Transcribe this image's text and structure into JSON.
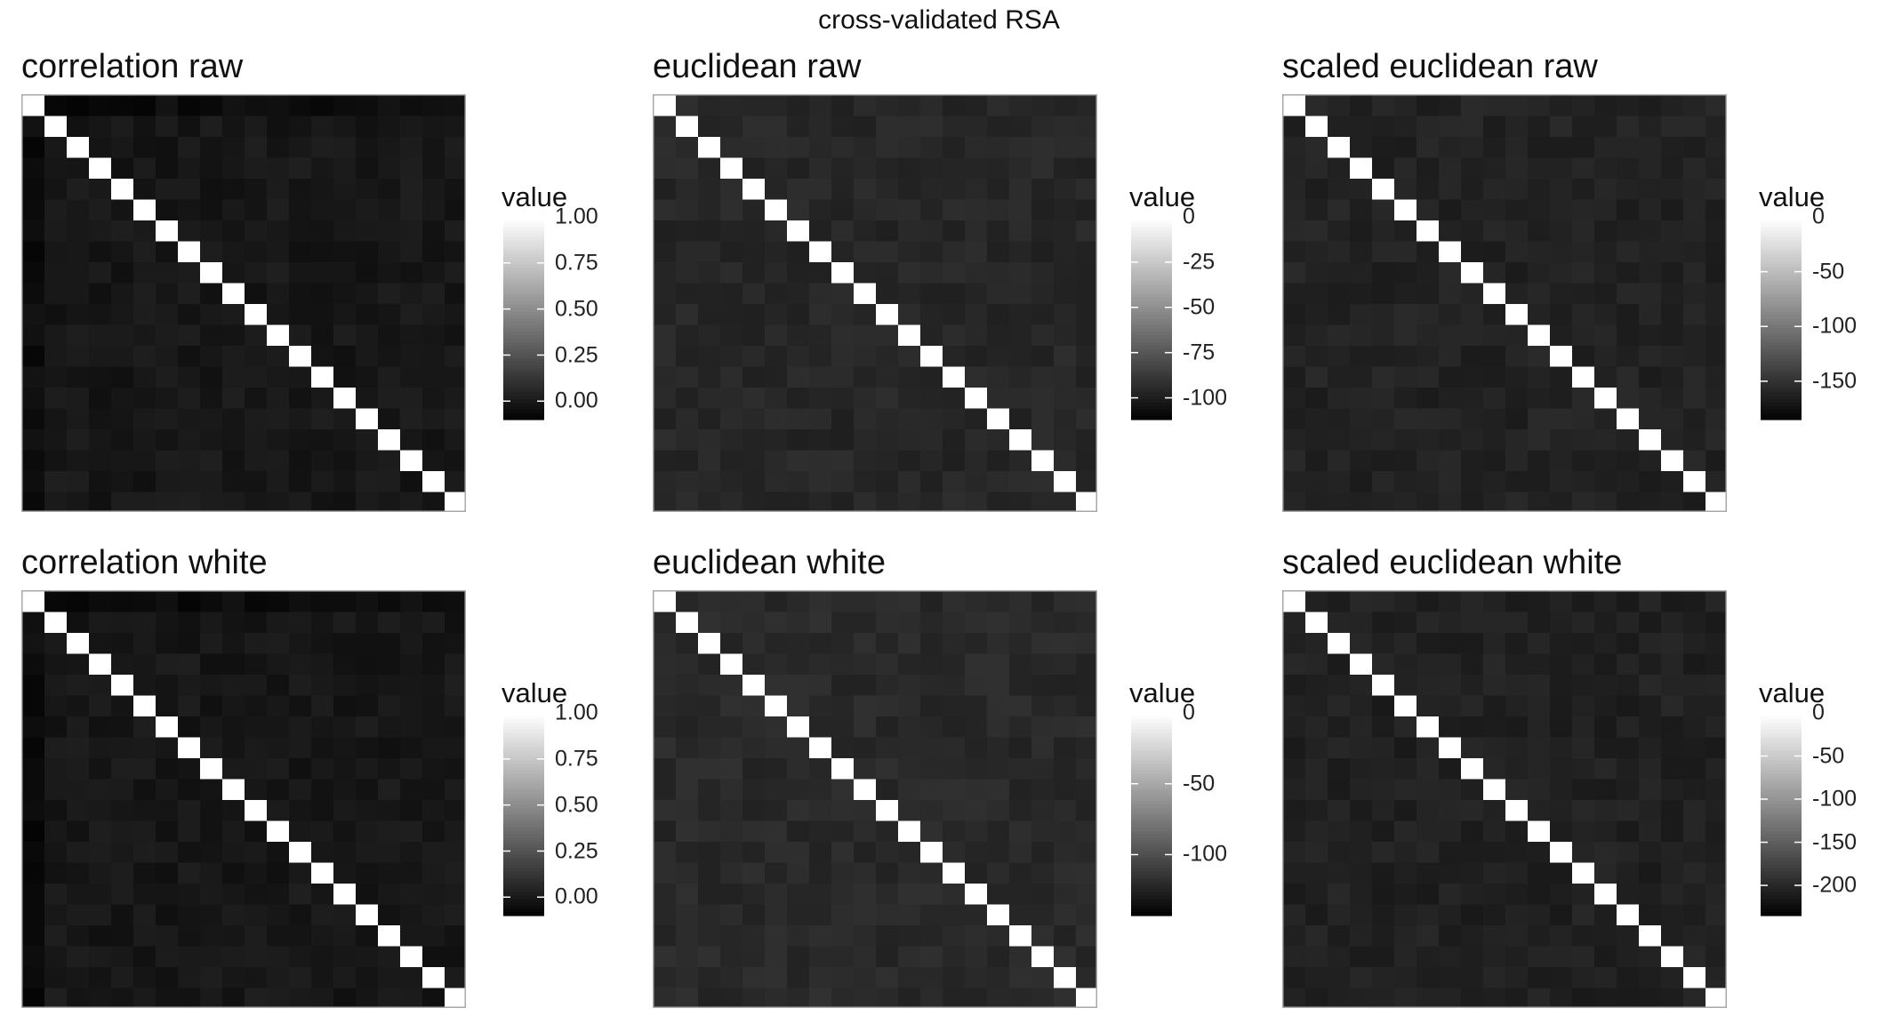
{
  "figure_title": "cross-validated RSA",
  "chart_data": [
    {
      "type": "heatmap",
      "title": "correlation raw",
      "legend_title": "value",
      "diagonal_value": 1.0,
      "off_diagonal_value": 0.0,
      "first_row_off_diagonal_value": -0.05,
      "color_range": [
        -0.1,
        1.0
      ],
      "ticks": [
        1.0,
        0.75,
        0.5,
        0.25,
        0.0
      ],
      "tick_labels": [
        "1.00",
        "0.75",
        "0.50",
        "0.25",
        "0.00"
      ],
      "matrix_size": 20
    },
    {
      "type": "heatmap",
      "title": "euclidean raw",
      "legend_title": "value",
      "diagonal_value": 0,
      "off_diagonal_value": -95,
      "color_range": [
        -112,
        0
      ],
      "ticks": [
        0,
        -25,
        -50,
        -75,
        -100
      ],
      "tick_labels": [
        "0",
        "-25",
        "-50",
        "-75",
        "-100"
      ],
      "matrix_size": 20
    },
    {
      "type": "heatmap",
      "title": "scaled euclidean raw",
      "legend_title": "value",
      "diagonal_value": 0,
      "off_diagonal_value": -160,
      "color_range": [
        -185,
        0
      ],
      "ticks": [
        0,
        -50,
        -100,
        -150
      ],
      "tick_labels": [
        "0",
        "-50",
        "-100",
        "-150"
      ],
      "matrix_size": 20
    },
    {
      "type": "heatmap",
      "title": "correlation white",
      "legend_title": "value",
      "diagonal_value": 1.0,
      "off_diagonal_value": 0.0,
      "first_row_off_diagonal_value": -0.05,
      "color_range": [
        -0.1,
        1.0
      ],
      "ticks": [
        1.0,
        0.75,
        0.5,
        0.25,
        0.0
      ],
      "tick_labels": [
        "1.00",
        "0.75",
        "0.50",
        "0.25",
        "0.00"
      ],
      "matrix_size": 20
    },
    {
      "type": "heatmap",
      "title": "euclidean white",
      "legend_title": "value",
      "diagonal_value": 0,
      "off_diagonal_value": -120,
      "color_range": [
        -143,
        0
      ],
      "ticks": [
        0,
        -50,
        -100
      ],
      "tick_labels": [
        "0",
        "-50",
        "-100"
      ],
      "matrix_size": 20
    },
    {
      "type": "heatmap",
      "title": "scaled euclidean white",
      "legend_title": "value",
      "diagonal_value": 0,
      "off_diagonal_value": -205,
      "color_range": [
        -235,
        0
      ],
      "ticks": [
        0,
        -50,
        -100,
        -150,
        -200
      ],
      "tick_labels": [
        "0",
        "-50",
        "-100",
        "-150",
        "-200"
      ],
      "matrix_size": 20
    }
  ]
}
